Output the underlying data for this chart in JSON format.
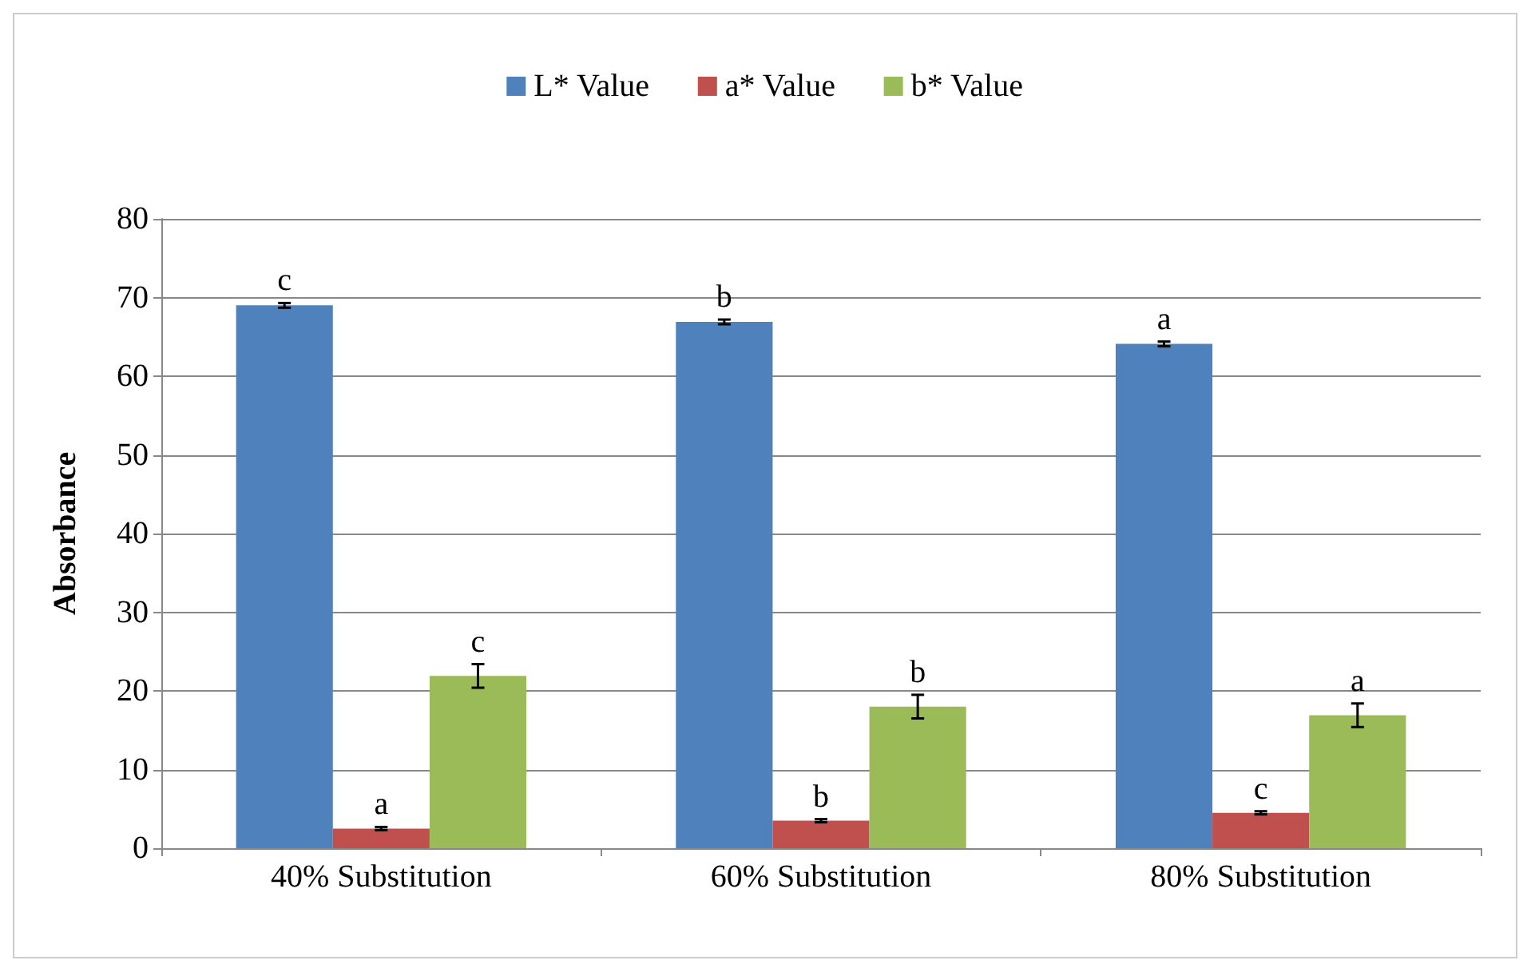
{
  "chart_data": {
    "type": "bar",
    "ylabel": "Absorbance",
    "categories": [
      "40% Substitution",
      "60% Substitution",
      "80% Substitution"
    ],
    "series": [
      {
        "name": "L* Value",
        "color": "#4f81bd",
        "values": [
          69.0,
          66.9,
          64.1
        ],
        "errors": [
          0.3,
          0.3,
          0.3
        ],
        "value_labels": [
          "c",
          "b",
          "a"
        ]
      },
      {
        "name": "a* Value",
        "color": "#c0504d",
        "values": [
          2.5,
          3.5,
          4.5
        ],
        "errors": [
          0.2,
          0.2,
          0.2
        ],
        "value_labels": [
          "a",
          "b",
          "c"
        ]
      },
      {
        "name": "b* Value",
        "color": "#9bbb59",
        "values": [
          21.9,
          18.0,
          16.9
        ],
        "errors": [
          1.5,
          1.5,
          1.5
        ],
        "value_labels": [
          "c",
          "b",
          "a"
        ]
      }
    ],
    "ylim": [
      0,
      80
    ],
    "yticks": [
      0,
      10,
      20,
      30,
      40,
      50,
      60,
      70,
      80
    ],
    "grid": "y",
    "legend": "top"
  }
}
